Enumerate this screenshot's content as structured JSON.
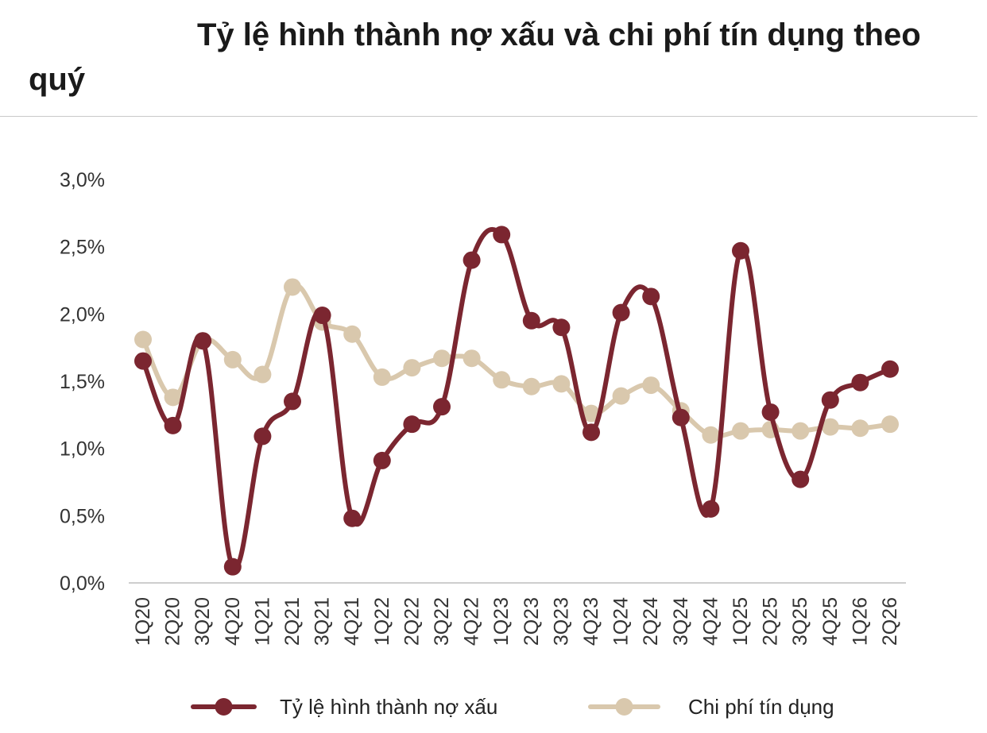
{
  "chart_data": {
    "type": "line",
    "title_line1": "Tỷ lệ hình thành nợ xấu và chi phí tín dụng theo",
    "title_line2": "quý",
    "categories": [
      "1Q20",
      "2Q20",
      "3Q20",
      "4Q20",
      "1Q21",
      "2Q21",
      "3Q21",
      "4Q21",
      "1Q22",
      "2Q22",
      "3Q22",
      "4Q22",
      "1Q23",
      "2Q23",
      "3Q23",
      "4Q23",
      "1Q24",
      "2Q24",
      "3Q24",
      "4Q24",
      "1Q25",
      "2Q25",
      "3Q25",
      "4Q25",
      "1Q26",
      "2Q26"
    ],
    "yticks": [
      "0,0%",
      "0,5%",
      "1,0%",
      "1,5%",
      "2,0%",
      "2,5%",
      "3,0%"
    ],
    "ylim": [
      0,
      3.0
    ],
    "y_unit": "%",
    "grid": false,
    "legend_position": "bottom",
    "series": [
      {
        "name": "Tỷ lệ hình thành nợ xấu",
        "color": "#7b2630",
        "values": [
          1.65,
          1.17,
          1.8,
          0.12,
          1.09,
          1.35,
          1.99,
          0.48,
          0.91,
          1.18,
          1.31,
          2.4,
          2.59,
          1.95,
          1.9,
          1.12,
          2.01,
          2.13,
          1.23,
          0.55,
          2.47,
          1.27,
          0.77,
          1.36,
          1.49,
          1.59
        ]
      },
      {
        "name": "Chi phí tín dụng",
        "color": "#d9c8ad",
        "values": [
          1.81,
          1.38,
          1.8,
          1.66,
          1.55,
          2.2,
          1.94,
          1.85,
          1.53,
          1.6,
          1.67,
          1.67,
          1.51,
          1.46,
          1.48,
          1.26,
          1.39,
          1.47,
          1.28,
          1.1,
          1.13,
          1.14,
          1.13,
          1.16,
          1.15,
          1.18
        ]
      }
    ]
  }
}
